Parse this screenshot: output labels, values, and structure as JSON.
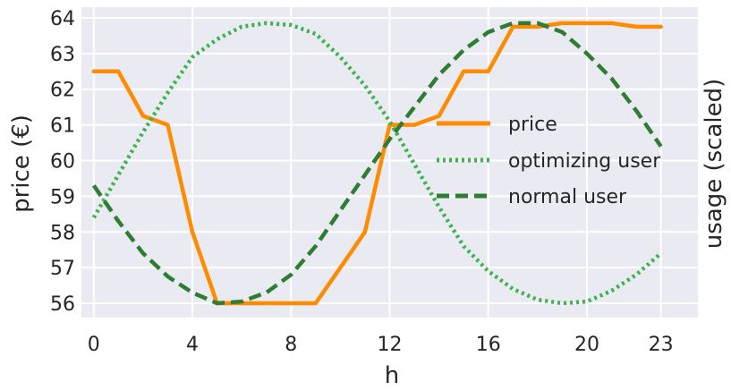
{
  "chart_data": {
    "type": "line",
    "xlabel": "h",
    "ylabel": "price (€)",
    "ylabel_right": "usage (scaled)",
    "xlim": [
      -0.5,
      24.5
    ],
    "ylim": [
      55.6,
      64.3
    ],
    "x_ticks": [
      0,
      4,
      8,
      12,
      16,
      20,
      23
    ],
    "y_ticks": [
      56,
      57,
      58,
      59,
      60,
      61,
      62,
      63,
      64
    ],
    "grid": true,
    "background": "#eaeaf2",
    "legend_position": "center-right",
    "x": [
      0,
      1,
      2,
      3,
      4,
      5,
      6,
      7,
      8,
      9,
      10,
      11,
      12,
      13,
      14,
      15,
      16,
      17,
      18,
      19,
      20,
      21,
      22,
      23
    ],
    "series": [
      {
        "name": "price",
        "color": "#ff8c00",
        "style": "solid",
        "values": [
          62.5,
          62.5,
          61.25,
          61.0,
          58.0,
          56.0,
          56.0,
          56.0,
          56.0,
          56.0,
          57.0,
          58.0,
          61.0,
          61.0,
          61.25,
          62.5,
          62.5,
          63.75,
          63.75,
          63.85,
          63.85,
          63.85,
          63.75,
          63.75
        ]
      },
      {
        "name": "optimizing user",
        "color": "#3cb44b",
        "style": "dotted",
        "values": [
          58.4,
          59.6,
          60.8,
          61.9,
          62.9,
          63.4,
          63.75,
          63.85,
          63.8,
          63.55,
          62.9,
          62.1,
          61.1,
          59.9,
          58.7,
          57.6,
          56.9,
          56.4,
          56.1,
          56.0,
          56.05,
          56.35,
          56.8,
          57.4
        ]
      },
      {
        "name": "normal user",
        "color": "#2e7d32",
        "style": "dashed",
        "values": [
          59.3,
          58.3,
          57.4,
          56.75,
          56.3,
          56.0,
          56.05,
          56.3,
          56.8,
          57.6,
          58.6,
          59.6,
          60.6,
          61.5,
          62.4,
          63.1,
          63.6,
          63.85,
          63.85,
          63.6,
          63.0,
          62.3,
          61.4,
          60.4
        ]
      }
    ]
  }
}
